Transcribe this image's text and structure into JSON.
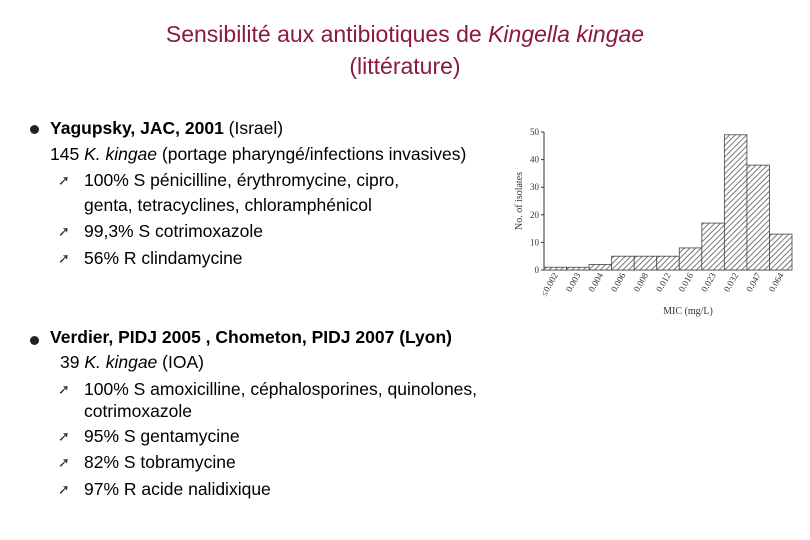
{
  "title": {
    "line1_pre": "Sensibilité aux antibiotiques de ",
    "line1_italic": "Kingella kingae",
    "line2": "(littérature)"
  },
  "section1": {
    "heading_bold": "Yagupsky, JAC, 2001",
    "heading_rest": " (Israel)",
    "sub_pre": "145 ",
    "sub_italic": "K. kingae",
    "sub_post": " (portage pharyngé/infections invasives)",
    "items": [
      "100%  S  pénicilline, érythromycine, cipro,",
      "genta, tetracyclines, chloramphénicol",
      "99,3% S  cotrimoxazole",
      "56%    R  clindamycine"
    ]
  },
  "section2": {
    "heading_bold": "Verdier, PIDJ 2005 , Chometon, PIDJ 2007 (Lyon)",
    "sub_pre": "39 ",
    "sub_italic": "K. kingae",
    "sub_post": " (IOA)",
    "items": [
      "100%    S    amoxicilline,    céphalosporines,    quinolones,",
      "cotrimoxazole",
      "95%   S gentamycine",
      "82%   S tobramycine",
      "97%   R acide nalidixique"
    ]
  },
  "chart_data": {
    "type": "bar",
    "categories": [
      "≤0.002",
      "0.003",
      "0.004",
      "0.006",
      "0.008",
      "0.012",
      "0.016",
      "0.023",
      "0.032",
      "0.047",
      "0.064"
    ],
    "values": [
      1,
      1,
      2,
      5,
      5,
      5,
      8,
      17,
      49,
      38,
      13
    ],
    "xlabel": "MIC (mg/L)",
    "ylabel": "No. of isolates",
    "ylim": [
      0,
      50
    ],
    "yticks": [
      "0",
      "10",
      "20",
      "30",
      "40",
      "50"
    ],
    "bar_color": "#555555"
  }
}
